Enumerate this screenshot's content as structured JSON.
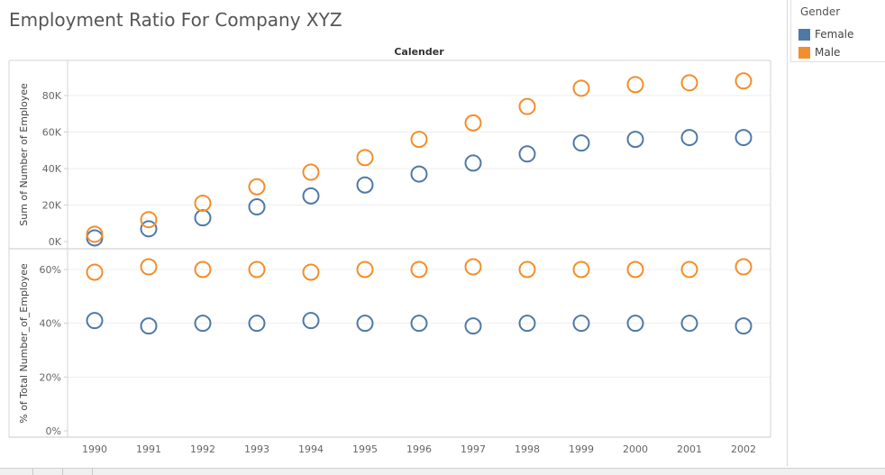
{
  "title": "Employment Ratio For Company XYZ",
  "legend": {
    "title": "Gender",
    "items": [
      {
        "label": "Female",
        "color": "#4e79a7"
      },
      {
        "label": "Male",
        "color": "#f28e2b"
      }
    ]
  },
  "chart_data": {
    "type": "scatter",
    "column_header": "Calender",
    "x": [
      "1990",
      "1991",
      "1992",
      "1993",
      "1994",
      "1995",
      "1996",
      "1997",
      "1998",
      "1999",
      "2000",
      "2001",
      "2002"
    ],
    "panels": [
      {
        "ylabel": "Sum of Number of Employee",
        "ylim": [
          0,
          95000
        ],
        "yticks": [
          {
            "value": 0,
            "label": "0K"
          },
          {
            "value": 20000,
            "label": "20K"
          },
          {
            "value": 40000,
            "label": "40K"
          },
          {
            "value": 60000,
            "label": "60K"
          },
          {
            "value": 80000,
            "label": "80K"
          }
        ],
        "series": [
          {
            "name": "Female",
            "values": [
              2000,
              7000,
              13000,
              19000,
              25000,
              31000,
              37000,
              43000,
              48000,
              54000,
              56000,
              57000,
              57000
            ]
          },
          {
            "name": "Male",
            "values": [
              4000,
              12000,
              21000,
              30000,
              38000,
              46000,
              56000,
              65000,
              74000,
              84000,
              86000,
              87000,
              88000
            ]
          }
        ]
      },
      {
        "ylabel": "% of Total Number_of_Employee",
        "ylim": [
          0,
          0.65
        ],
        "yticks": [
          {
            "value": 0,
            "label": "0%"
          },
          {
            "value": 0.2,
            "label": "20%"
          },
          {
            "value": 0.4,
            "label": "40%"
          },
          {
            "value": 0.6,
            "label": "60%"
          }
        ],
        "series": [
          {
            "name": "Female",
            "values": [
              0.41,
              0.39,
              0.4,
              0.4,
              0.41,
              0.4,
              0.4,
              0.39,
              0.4,
              0.4,
              0.4,
              0.4,
              0.39
            ]
          },
          {
            "name": "Male",
            "values": [
              0.59,
              0.61,
              0.6,
              0.6,
              0.59,
              0.6,
              0.6,
              0.61,
              0.6,
              0.6,
              0.6,
              0.6,
              0.61
            ]
          }
        ]
      }
    ],
    "grid": true,
    "legend_position": "top-right"
  }
}
